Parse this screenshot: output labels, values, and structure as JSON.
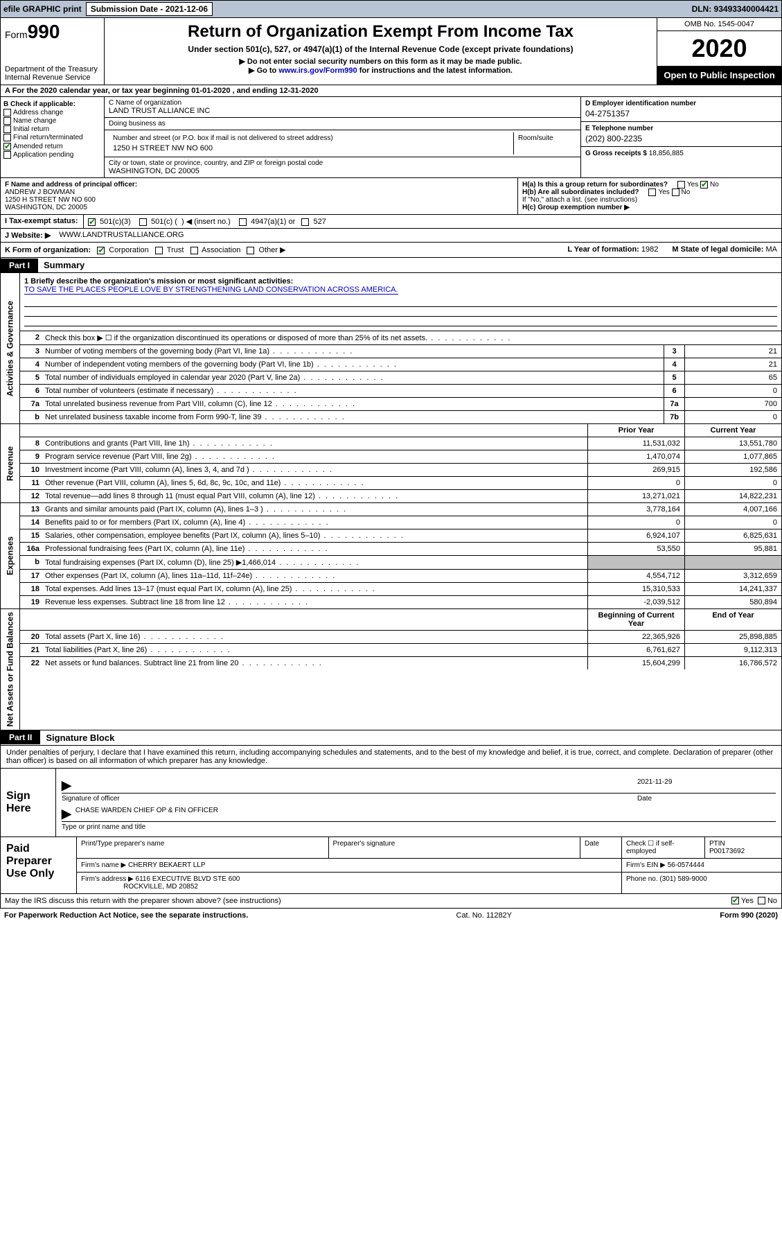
{
  "topbar": {
    "efile_label": "efile GRAPHIC print",
    "submission_label": "Submission Date - 2021-12-06",
    "dln_label": "DLN: 93493340004421"
  },
  "header": {
    "form_prefix": "Form",
    "form_number": "990",
    "dept": "Department of the Treasury",
    "irs": "Internal Revenue Service",
    "title": "Return of Organization Exempt From Income Tax",
    "subtitle": "Under section 501(c), 527, or 4947(a)(1) of the Internal Revenue Code (except private foundations)",
    "note1": "▶ Do not enter social security numbers on this form as it may be made public.",
    "note2_prefix": "▶ Go to ",
    "note2_link": "www.irs.gov/Form990",
    "note2_suffix": " for instructions and the latest information.",
    "omb": "OMB No. 1545-0047",
    "year": "2020",
    "otp": "Open to Public Inspection"
  },
  "row_a": "A For the 2020 calendar year, or tax year beginning 01-01-2020   , and ending 12-31-2020",
  "section_b": {
    "header": "B Check if applicable:",
    "items": [
      {
        "label": "Address change",
        "checked": false
      },
      {
        "label": "Name change",
        "checked": false
      },
      {
        "label": "Initial return",
        "checked": false
      },
      {
        "label": "Final return/terminated",
        "checked": false
      },
      {
        "label": "Amended return",
        "checked": true
      },
      {
        "label": "Application pending",
        "checked": false
      }
    ]
  },
  "section_c": {
    "name_label": "C Name of organization",
    "name": "LAND TRUST ALLIANCE INC",
    "dba_label": "Doing business as",
    "dba": "",
    "street_label": "Number and street (or P.O. box if mail is not delivered to street address)",
    "street": "1250 H STREET NW NO 600",
    "suite_label": "Room/suite",
    "city_label": "City or town, state or province, country, and ZIP or foreign postal code",
    "city": "WASHINGTON, DC  20005"
  },
  "section_d": {
    "label": "D Employer identification number",
    "value": "04-2751357"
  },
  "section_e": {
    "label": "E Telephone number",
    "value": "(202) 800-2235"
  },
  "section_g": {
    "label": "G Gross receipts $",
    "value": "18,856,885"
  },
  "section_f": {
    "label": "F  Name and address of principal officer:",
    "name": "ANDREW J BOWMAN",
    "street": "1250 H STREET NW NO 600",
    "city": "WASHINGTON, DC  20005"
  },
  "section_h": {
    "ha_label": "H(a)  Is this a group return for subordinates?",
    "ha_yes": false,
    "ha_no": true,
    "hb_label": "H(b)  Are all subordinates included?",
    "hb_note": "If \"No,\" attach a list. (see instructions)",
    "hc_label": "H(c)  Group exemption number ▶"
  },
  "row_i": {
    "label": "I  Tax-exempt status:",
    "c501c3": true,
    "opts": "501(c)(3)      501(c) (  ) ◀ (insert no.)      4947(a)(1) or      527"
  },
  "row_j": {
    "label": "J  Website: ▶",
    "value": "WWW.LANDTRUSTALLIANCE.ORG"
  },
  "row_k": {
    "label": "K Form of organization:",
    "corp": true,
    "opts": "Corporation      Trust      Association      Other ▶",
    "l_label": "L Year of formation:",
    "l_value": "1982",
    "m_label": "M State of legal domicile:",
    "m_value": "MA"
  },
  "part1": {
    "tag": "Part I",
    "title": "Summary"
  },
  "mission": {
    "label": "1  Briefly describe the organization's mission or most significant activities:",
    "text": "TO SAVE THE PLACES PEOPLE LOVE BY STRENGTHENING LAND CONSERVATION ACROSS AMERICA."
  },
  "governance_lines": [
    {
      "num": "2",
      "desc": "Check this box ▶ ☐  if the organization discontinued its operations or disposed of more than 25% of its net assets.",
      "box": "",
      "val": ""
    },
    {
      "num": "3",
      "desc": "Number of voting members of the governing body (Part VI, line 1a)",
      "box": "3",
      "val": "21"
    },
    {
      "num": "4",
      "desc": "Number of independent voting members of the governing body (Part VI, line 1b)",
      "box": "4",
      "val": "21"
    },
    {
      "num": "5",
      "desc": "Total number of individuals employed in calendar year 2020 (Part V, line 2a)",
      "box": "5",
      "val": "65"
    },
    {
      "num": "6",
      "desc": "Total number of volunteers (estimate if necessary)",
      "box": "6",
      "val": "0"
    },
    {
      "num": "7a",
      "desc": "Total unrelated business revenue from Part VIII, column (C), line 12",
      "box": "7a",
      "val": "700"
    },
    {
      "num": "b",
      "desc": "Net unrelated business taxable income from Form 990-T, line 39",
      "box": "7b",
      "val": "0"
    }
  ],
  "financial_header": {
    "prior": "Prior Year",
    "current": "Current Year"
  },
  "revenue_lines": [
    {
      "num": "8",
      "desc": "Contributions and grants (Part VIII, line 1h)",
      "prior": "11,531,032",
      "current": "13,551,780"
    },
    {
      "num": "9",
      "desc": "Program service revenue (Part VIII, line 2g)",
      "prior": "1,470,074",
      "current": "1,077,865"
    },
    {
      "num": "10",
      "desc": "Investment income (Part VIII, column (A), lines 3, 4, and 7d )",
      "prior": "269,915",
      "current": "192,586"
    },
    {
      "num": "11",
      "desc": "Other revenue (Part VIII, column (A), lines 5, 6d, 8c, 9c, 10c, and 11e)",
      "prior": "0",
      "current": "0"
    },
    {
      "num": "12",
      "desc": "Total revenue—add lines 8 through 11 (must equal Part VIII, column (A), line 12)",
      "prior": "13,271,021",
      "current": "14,822,231"
    }
  ],
  "expense_lines": [
    {
      "num": "13",
      "desc": "Grants and similar amounts paid (Part IX, column (A), lines 1–3 )",
      "prior": "3,778,164",
      "current": "4,007,166"
    },
    {
      "num": "14",
      "desc": "Benefits paid to or for members (Part IX, column (A), line 4)",
      "prior": "0",
      "current": "0"
    },
    {
      "num": "15",
      "desc": "Salaries, other compensation, employee benefits (Part IX, column (A), lines 5–10)",
      "prior": "6,924,107",
      "current": "6,825,631"
    },
    {
      "num": "16a",
      "desc": "Professional fundraising fees (Part IX, column (A), line 11e)",
      "prior": "53,550",
      "current": "95,881"
    },
    {
      "num": "b",
      "desc": "Total fundraising expenses (Part IX, column (D), line 25) ▶1,466,014",
      "prior": "grey",
      "current": "grey"
    },
    {
      "num": "17",
      "desc": "Other expenses (Part IX, column (A), lines 11a–11d, 11f–24e)",
      "prior": "4,554,712",
      "current": "3,312,659"
    },
    {
      "num": "18",
      "desc": "Total expenses. Add lines 13–17 (must equal Part IX, column (A), line 25)",
      "prior": "15,310,533",
      "current": "14,241,337"
    },
    {
      "num": "19",
      "desc": "Revenue less expenses. Subtract line 18 from line 12",
      "prior": "-2,039,512",
      "current": "580,894"
    }
  ],
  "netassets_header": {
    "begin": "Beginning of Current Year",
    "end": "End of Year"
  },
  "netassets_lines": [
    {
      "num": "20",
      "desc": "Total assets (Part X, line 16)",
      "prior": "22,365,926",
      "current": "25,898,885"
    },
    {
      "num": "21",
      "desc": "Total liabilities (Part X, line 26)",
      "prior": "6,761,627",
      "current": "9,112,313"
    },
    {
      "num": "22",
      "desc": "Net assets or fund balances. Subtract line 21 from line 20",
      "prior": "15,604,299",
      "current": "16,786,572"
    }
  ],
  "part2": {
    "tag": "Part II",
    "title": "Signature Block"
  },
  "penalty": "Under penalties of perjury, I declare that I have examined this return, including accompanying schedules and statements, and to the best of my knowledge and belief, it is true, correct, and complete. Declaration of preparer (other than officer) is based on all information of which preparer has any knowledge.",
  "sign": {
    "label": "Sign Here",
    "sig_label": "Signature of officer",
    "date_label": "Date",
    "date": "2021-11-29",
    "name": "CHASE WARDEN  CHIEF OP & FIN OFFICER",
    "name_label": "Type or print name and title"
  },
  "preparer": {
    "label": "Paid Preparer Use Only",
    "h_name": "Print/Type preparer's name",
    "h_sig": "Preparer's signature",
    "h_date": "Date",
    "h_check": "Check ☐ if self-employed",
    "h_ptin": "PTIN",
    "ptin": "P00173692",
    "firm_label": "Firm's name    ▶",
    "firm": "CHERRY BEKAERT LLP",
    "ein_label": "Firm's EIN ▶",
    "ein": "56-0574444",
    "addr_label": "Firm's address ▶",
    "addr1": "6116 EXECUTIVE BLVD STE 600",
    "addr2": "ROCKVILLE, MD  20852",
    "phone_label": "Phone no.",
    "phone": "(301) 589-9000"
  },
  "discuss": {
    "label": "May the IRS discuss this return with the preparer shown above? (see instructions)",
    "yes": true
  },
  "bottom": {
    "left": "For Paperwork Reduction Act Notice, see the separate instructions.",
    "center": "Cat. No. 11282Y",
    "right": "Form 990 (2020)"
  },
  "vtabs": {
    "gov": "Activities & Governance",
    "rev": "Revenue",
    "exp": "Expenses",
    "net": "Net Assets or Fund Balances"
  }
}
